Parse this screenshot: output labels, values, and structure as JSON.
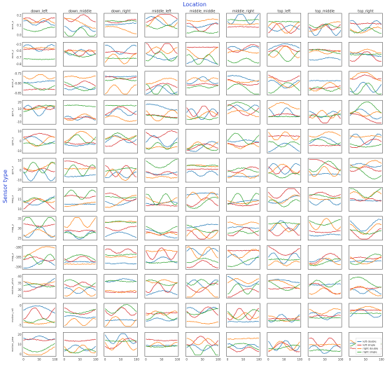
{
  "figure": {
    "col_axis_title": "Location",
    "row_axis_title": "Sensor type",
    "title_color": "#1f3fd6"
  },
  "chart_data": {
    "type": "line",
    "layout": "small-multiples grid (12 rows x 9 columns)",
    "columns": [
      "down_left",
      "down_middle",
      "down_right",
      "middle_left",
      "middle_middle",
      "middle_right",
      "top_left",
      "top_middle",
      "top_right"
    ],
    "rows": [
      {
        "label": "acce_x",
        "y_ticks": [
          "0.2",
          "0.1",
          "0.0"
        ],
        "ylim": [
          -0.05,
          0.25
        ]
      },
      {
        "label": "acce_y",
        "y_ticks": [
          "-0.5",
          "-0.6",
          "-0.7",
          "-0.8"
        ],
        "ylim": [
          -0.85,
          -0.45
        ]
      },
      {
        "label": "acce_z",
        "y_ticks": [
          "-0.75",
          "-0.80",
          "-0.85"
        ],
        "ylim": [
          -0.88,
          -0.72
        ]
      },
      {
        "label": "gyro_x",
        "y_ticks": [
          "20",
          "10",
          "0",
          "-10"
        ],
        "ylim": [
          -15,
          25
        ]
      },
      {
        "label": "gyro_y",
        "y_ticks": [
          "10",
          "0",
          "-10"
        ],
        "ylim": [
          -15,
          15
        ]
      },
      {
        "label": "gyro_z",
        "y_ticks": [
          "10",
          "0",
          "-10"
        ],
        "ylim": [
          -15,
          15
        ]
      },
      {
        "label": "mag_x",
        "y_ticks": [
          "20",
          "15",
          "10"
        ],
        "ylim": [
          8,
          22
        ]
      },
      {
        "label": "mag_y",
        "y_ticks": [
          "35",
          "30",
          "25"
        ],
        "ylim": [
          22,
          38
        ]
      },
      {
        "label": "mag_z",
        "y_ticks": [
          "-180",
          "-185",
          "-190"
        ],
        "ylim": [
          -192,
          -178
        ]
      },
      {
        "label": "motion_pitch",
        "y_ticks": [
          "40",
          "35",
          "30",
          "25"
        ],
        "ylim": [
          22,
          42
        ]
      },
      {
        "label": "motion_roll",
        "y_ticks": [
          "0",
          "-5"
        ],
        "ylim": [
          -8,
          3
        ]
      },
      {
        "label": "motion_yaw",
        "y_ticks": [
          "20",
          "10",
          "0"
        ],
        "ylim": [
          -5,
          25
        ]
      }
    ],
    "x_ticks": [
      "0",
      "50",
      "100"
    ],
    "xlim": [
      0,
      100
    ],
    "series": [
      {
        "name": "left double",
        "color": "#1f77b4"
      },
      {
        "name": "left single",
        "color": "#d62728"
      },
      {
        "name": "right double",
        "color": "#ff7f0e"
      },
      {
        "name": "right single",
        "color": "#2ca02c"
      }
    ],
    "legend_position": "bottom-right panel, lower right"
  }
}
